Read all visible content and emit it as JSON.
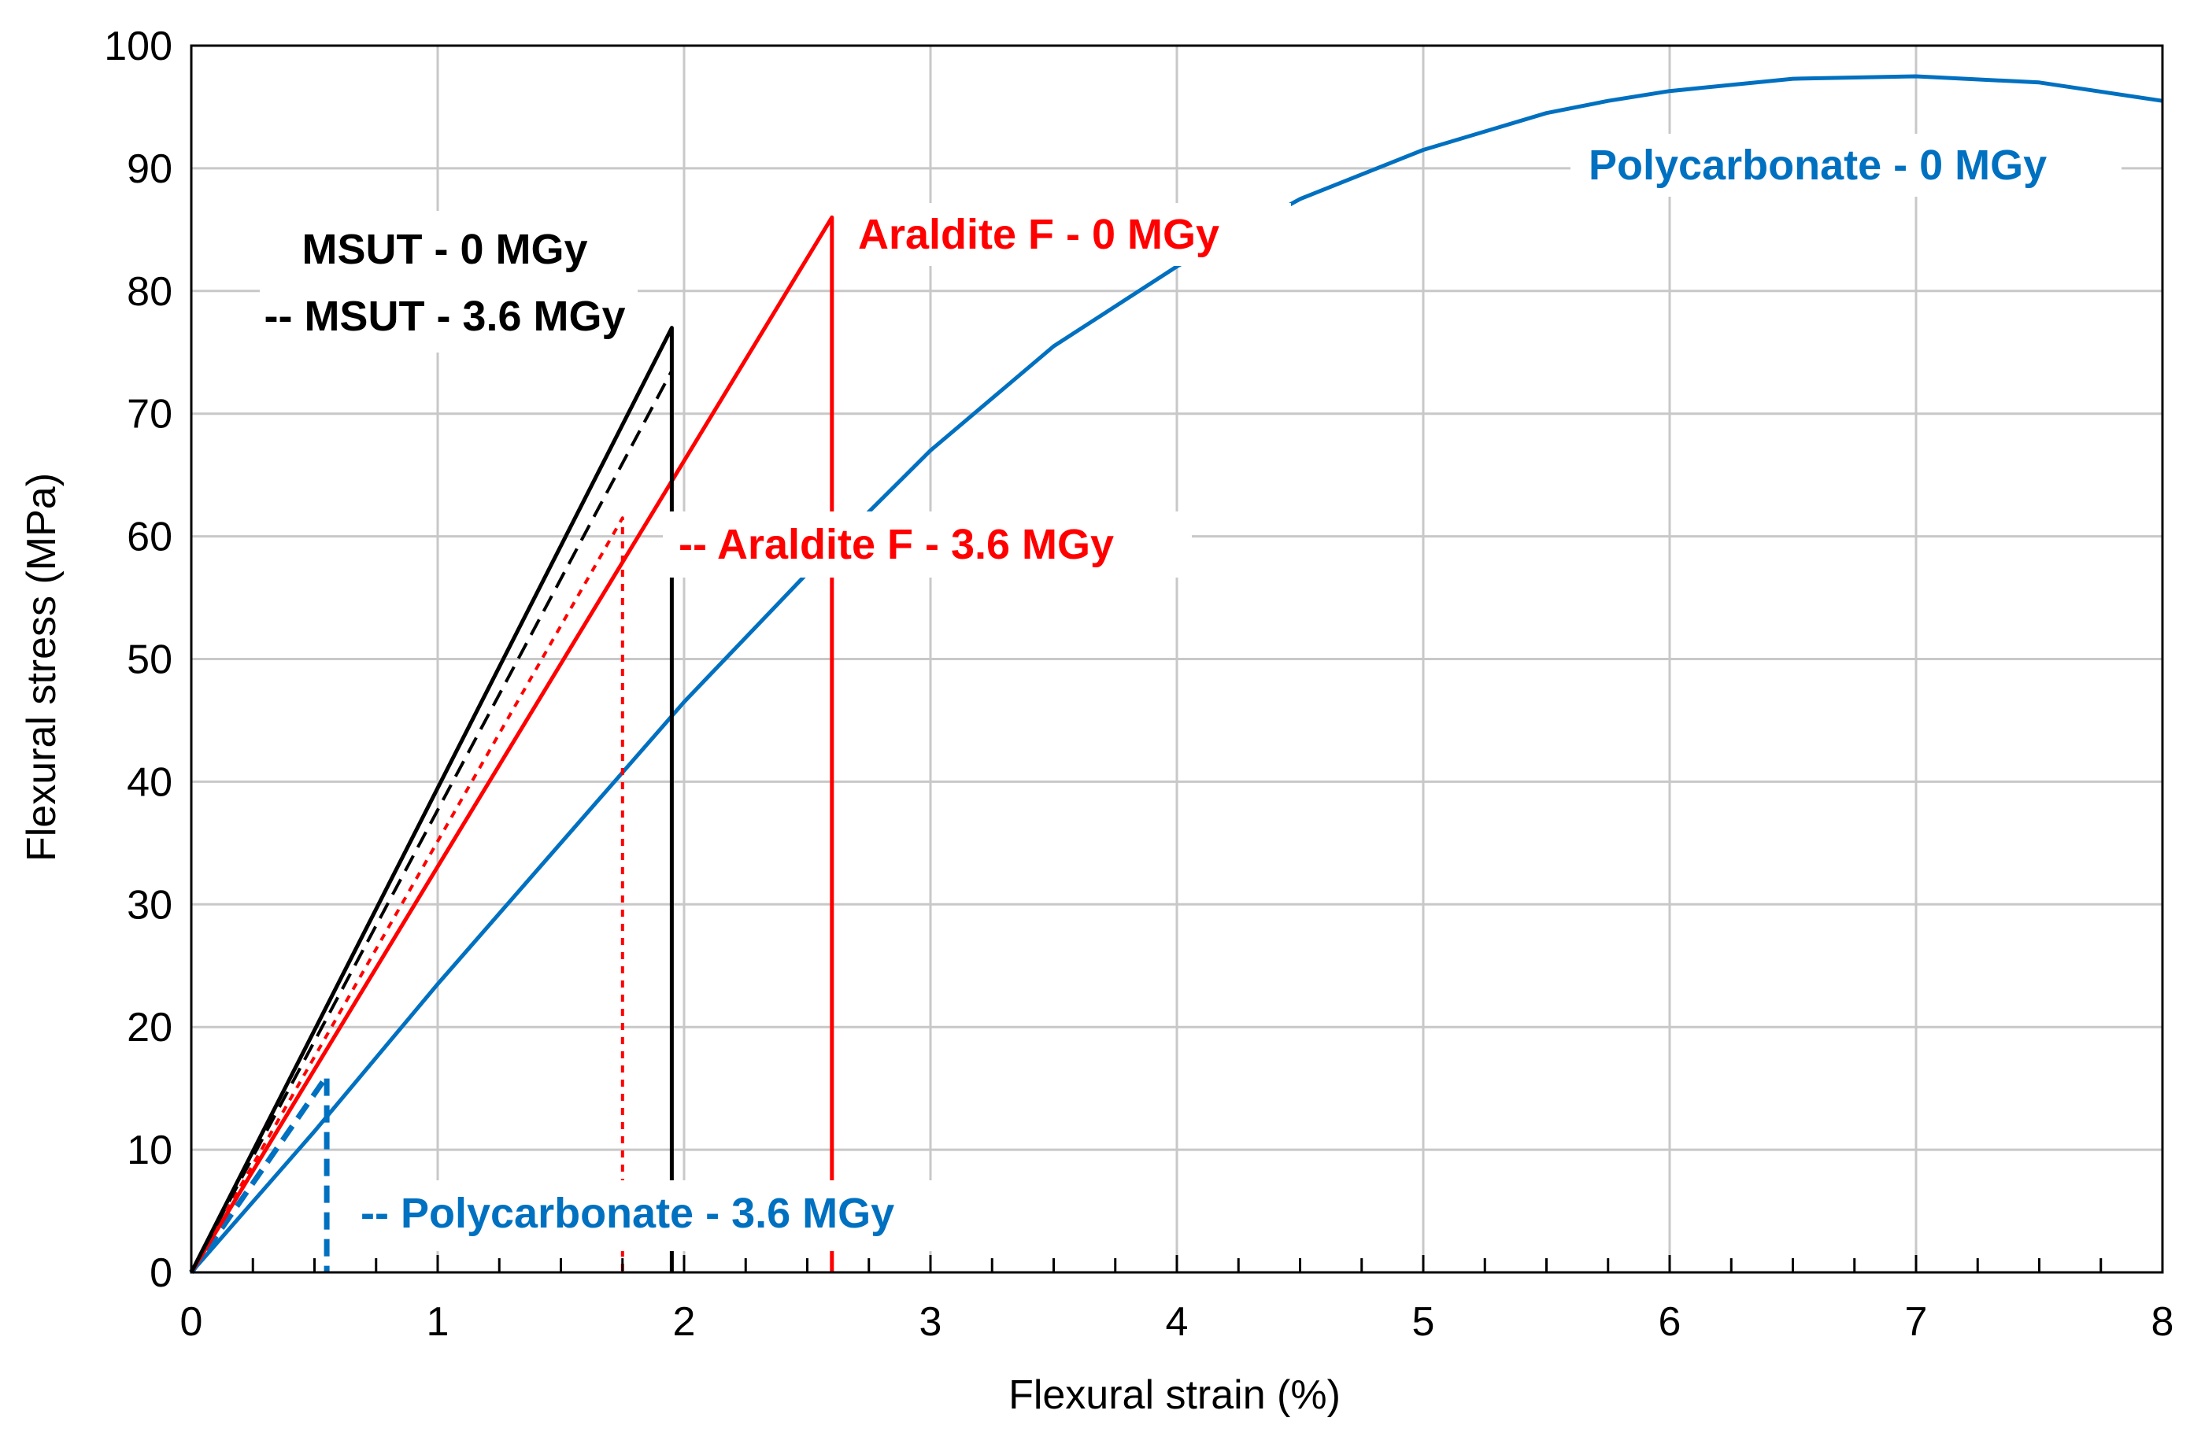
{
  "chart_data": {
    "type": "line",
    "title": "",
    "xlabel": "Flexural strain (%)",
    "ylabel": "Flexural stress (MPa)",
    "xlim": [
      0,
      8
    ],
    "ylim": [
      0,
      100
    ],
    "xticks": [
      0,
      1,
      2,
      3,
      4,
      5,
      6,
      7,
      8
    ],
    "yticks": [
      0,
      10,
      20,
      30,
      40,
      50,
      60,
      70,
      80,
      90,
      100
    ],
    "x_minor_step": 0.25,
    "grid": true,
    "series": [
      {
        "name": "Polycarbonate - 0 MGy",
        "color": "#0070C0",
        "style": "solid",
        "x": [
          0,
          0.5,
          1,
          1.5,
          2,
          2.5,
          3,
          3.5,
          4,
          4.5,
          5,
          5.5,
          5.75,
          6,
          6.5,
          7,
          7.5,
          8
        ],
        "y": [
          0,
          11.5,
          23.5,
          35,
          46.5,
          57,
          67,
          75.5,
          82,
          87.5,
          91.5,
          94.5,
          95.5,
          96.3,
          97.3,
          97.5,
          97,
          95.5
        ]
      },
      {
        "name": "Polycarbonate - 3.6 MGy",
        "color": "#0070C0",
        "style": "dashed",
        "x": [
          0,
          0.55,
          0.55
        ],
        "y": [
          0,
          16,
          0
        ]
      },
      {
        "name": "Araldite F - 0 MGy",
        "color": "#FF0000",
        "style": "solid",
        "x": [
          0,
          2.6,
          2.6
        ],
        "y": [
          0,
          86,
          0
        ]
      },
      {
        "name": "Araldite F - 3.6 MGy",
        "color": "#FF0000",
        "style": "dotted",
        "x": [
          0,
          1.75,
          1.75
        ],
        "y": [
          0,
          61.5,
          0
        ]
      },
      {
        "name": "MSUT - 0 MGy",
        "color": "#000000",
        "style": "solid",
        "x": [
          0,
          1.95,
          1.95
        ],
        "y": [
          0,
          77,
          0
        ]
      },
      {
        "name": "MSUT - 3.6 MGy",
        "color": "#000000",
        "style": "dashed",
        "x": [
          0,
          1.95,
          1.95
        ],
        "y": [
          0,
          73.5,
          0
        ]
      }
    ],
    "annotations": [
      {
        "text": "MSUT - 0 MGy",
        "color": "#000000"
      },
      {
        "text": "-- MSUT - 3.6 MGy",
        "color": "#000000"
      },
      {
        "text": "Araldite F - 0 MGy",
        "color": "#FF0000"
      },
      {
        "text": "-- Araldite F - 3.6 MGy",
        "color": "#FF0000"
      },
      {
        "text": "Polycarbonate - 0 MGy",
        "color": "#0070C0"
      },
      {
        "text": "-- Polycarbonate - 3.6 MGy",
        "color": "#0070C0"
      }
    ]
  }
}
